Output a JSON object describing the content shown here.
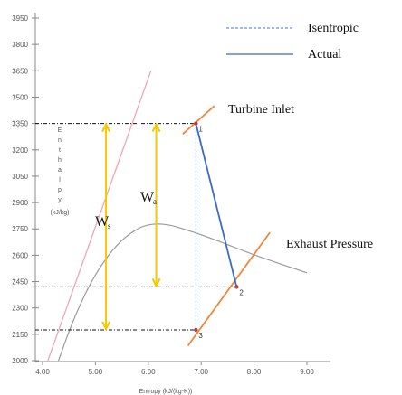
{
  "chart_data": {
    "type": "diagram",
    "xlabel": "Entropy (kJ/(kg-K))",
    "ylabel_letters": [
      "E",
      "n",
      "t",
      "h",
      "a",
      "l",
      "p",
      "y"
    ],
    "ylabel_unit": "(kJ/kg)",
    "x_ticks": [
      "4.00",
      "5.00",
      "6.00",
      "7.00",
      "8.00",
      "9.00"
    ],
    "y_ticks": [
      "2000",
      "2150",
      "2300",
      "2450",
      "2600",
      "2750",
      "2900",
      "3050",
      "3200",
      "3350",
      "3500",
      "3650",
      "3800",
      "3950"
    ],
    "xlim": [
      4.0,
      9.0
    ],
    "ylim": [
      2000,
      3950
    ],
    "legend": [
      {
        "label": "Isentropic",
        "style": "dotted",
        "color": "#3a7bd5"
      },
      {
        "label": "Actual",
        "style": "solid",
        "color": "#3a6bc4"
      }
    ],
    "annotations": {
      "turbine_inlet": "Turbine Inlet",
      "exhaust_pressure": "Exhaust Pressure"
    },
    "points": [
      {
        "label": "1",
        "s": 6.9,
        "h": 3350
      },
      {
        "label": "2",
        "s": 7.67,
        "h": 2420
      },
      {
        "label": "3",
        "s": 6.9,
        "h": 2175
      }
    ],
    "work_labels": [
      {
        "main": "W",
        "sub": "s"
      },
      {
        "main": "W",
        "sub": "a"
      }
    ],
    "saturation_dome": [
      [
        4.3,
        2000
      ],
      [
        4.6,
        2250
      ],
      [
        5.0,
        2500
      ],
      [
        5.5,
        2700
      ],
      [
        6.1,
        2800
      ],
      [
        7.0,
        2720
      ],
      [
        8.0,
        2600
      ],
      [
        9.0,
        2500
      ]
    ],
    "pink_line": [
      [
        4.1,
        2000
      ],
      [
        6.05,
        3650
      ]
    ],
    "isentropic_work_arrow": {
      "s": 5.2,
      "h_top": 3350,
      "h_bottom": 2175
    },
    "actual_work_arrow": {
      "s": 6.15,
      "h_top": 3350,
      "h_bottom": 2420
    },
    "colors": {
      "dome": "#9a9a9a",
      "pink": "#f0a0ad",
      "work_arrow": "#f5c800",
      "pressure_line": "#f0863a",
      "isentropic": "#3a7bd5",
      "actual": "#3a6bc4",
      "guide": "#111111"
    }
  }
}
